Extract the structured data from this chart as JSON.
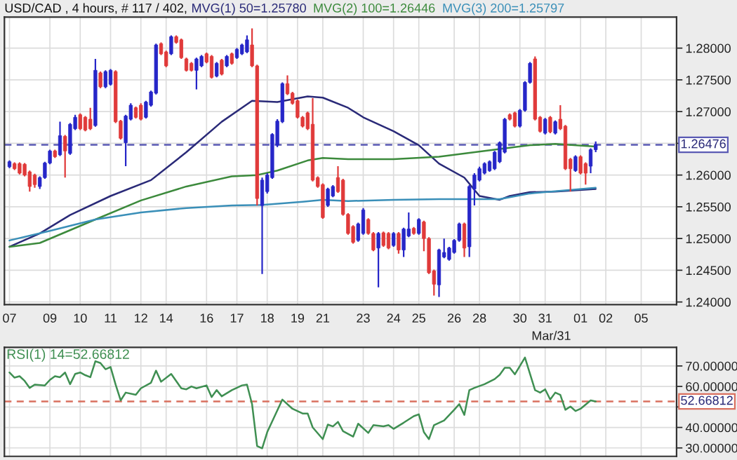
{
  "chart_data": [
    {
      "type": "candlestick",
      "title": "USD/CAD , 4 hours, # 117 / 402,",
      "categories": [
        "07",
        null,
        null,
        null,
        null,
        null,
        null,
        null,
        "09",
        null,
        null,
        null,
        null,
        null,
        "10",
        null,
        null,
        null,
        null,
        null,
        "11",
        null,
        null,
        null,
        null,
        null,
        "12",
        null,
        null,
        null,
        null,
        "14",
        null,
        null,
        null,
        null,
        null,
        null,
        null,
        "16",
        null,
        null,
        null,
        null,
        null,
        "17",
        null,
        null,
        null,
        null,
        null,
        "18",
        null,
        null,
        null,
        null,
        null,
        "19",
        null,
        null,
        null,
        null,
        "21",
        null,
        null,
        null,
        null,
        null,
        null,
        null,
        "23",
        null,
        null,
        null,
        null,
        null,
        "24",
        null,
        null,
        null,
        null,
        "25",
        null,
        null,
        null,
        null,
        null,
        null,
        "26",
        null,
        null,
        null,
        null,
        "28",
        null,
        null,
        null,
        null,
        null,
        null,
        null,
        "30",
        null,
        null,
        null,
        null,
        "31",
        null,
        null,
        null,
        null,
        null,
        null,
        "01",
        null,
        null,
        null,
        null,
        "02",
        null,
        null,
        null,
        null,
        null,
        null,
        "05",
        null,
        null,
        null,
        null,
        null,
        null
      ],
      "ohlc": [
        [
          1.2613,
          1.2623,
          1.2611,
          1.2621
        ],
        [
          1.2618,
          1.262,
          1.2608,
          1.261
        ],
        [
          1.2618,
          1.262,
          1.2601,
          1.2603
        ],
        [
          1.2617,
          1.2619,
          1.2598,
          1.26
        ],
        [
          1.2605,
          1.2607,
          1.2574,
          1.2582
        ],
        [
          1.26,
          1.2602,
          1.258,
          1.2585
        ],
        [
          1.2582,
          1.2598,
          1.2578,
          1.2596
        ],
        [
          1.2596,
          1.2621,
          1.2594,
          1.2619
        ],
        [
          1.2619,
          1.264,
          1.2617,
          1.2638
        ],
        [
          1.2638,
          1.264,
          1.2627,
          1.2629
        ],
        [
          1.2632,
          1.2684,
          1.263,
          1.2662
        ],
        [
          1.2661,
          1.2663,
          1.2596,
          1.2638
        ],
        [
          1.2634,
          1.2682,
          1.2632,
          1.268
        ],
        [
          1.2673,
          1.2695,
          1.2671,
          1.2691
        ],
        [
          1.2695,
          1.2697,
          1.2671,
          1.2673
        ],
        [
          1.2691,
          1.2693,
          1.2669,
          1.2671
        ],
        [
          1.2688,
          1.2706,
          1.2671,
          1.2673
        ],
        [
          1.2678,
          1.2783,
          1.2676,
          1.2765
        ],
        [
          1.2761,
          1.2763,
          1.2737,
          1.2739
        ],
        [
          1.2739,
          1.2765,
          1.2737,
          1.2763
        ],
        [
          1.2743,
          1.2767,
          1.2741,
          1.2765
        ],
        [
          1.2763,
          1.2765,
          1.2682,
          1.2684
        ],
        [
          1.2685,
          1.2687,
          1.2656,
          1.2658
        ],
        [
          1.2651,
          1.2695,
          1.2614,
          1.2693
        ],
        [
          1.2688,
          1.2713,
          1.2686,
          1.271
        ],
        [
          1.2706,
          1.2708,
          1.2689,
          1.2691
        ],
        [
          1.271,
          1.2713,
          1.2686,
          1.2688
        ],
        [
          1.2691,
          1.2717,
          1.2689,
          1.2715
        ],
        [
          1.271,
          1.2733,
          1.2708,
          1.2731
        ],
        [
          1.2729,
          1.2807,
          1.2727,
          1.2805
        ],
        [
          1.2807,
          1.2809,
          1.2789,
          1.2791
        ],
        [
          1.2794,
          1.2796,
          1.277,
          1.2772
        ],
        [
          1.2791,
          1.282,
          1.2789,
          1.2818
        ],
        [
          1.2818,
          1.282,
          1.2807,
          1.2809
        ],
        [
          1.2813,
          1.2815,
          1.2783,
          1.2785
        ],
        [
          1.2783,
          1.2785,
          1.2763,
          1.2765
        ],
        [
          1.2776,
          1.2778,
          1.2763,
          1.2765
        ],
        [
          1.2765,
          1.2785,
          1.2735,
          1.2783
        ],
        [
          1.2772,
          1.2789,
          1.277,
          1.2787
        ],
        [
          1.2791,
          1.2793,
          1.2776,
          1.2778
        ],
        [
          1.2787,
          1.2789,
          1.2752,
          1.2754
        ],
        [
          1.2756,
          1.2778,
          1.2754,
          1.2776
        ],
        [
          1.2781,
          1.2783,
          1.2757,
          1.2759
        ],
        [
          1.2772,
          1.2789,
          1.277,
          1.2787
        ],
        [
          1.2791,
          1.2793,
          1.2774,
          1.2776
        ],
        [
          1.2785,
          1.28,
          1.2783,
          1.2798
        ],
        [
          1.2791,
          1.2807,
          1.2789,
          1.2805
        ],
        [
          1.2794,
          1.282,
          1.2792,
          1.2813
        ],
        [
          1.2805,
          1.2831,
          1.277,
          1.2772
        ],
        [
          1.2772,
          1.2774,
          1.2552,
          1.2563
        ],
        [
          1.2552,
          1.2596,
          1.2444,
          1.2592
        ],
        [
          1.2574,
          1.2603,
          1.2571,
          1.26
        ],
        [
          1.2596,
          1.2666,
          1.2594,
          1.2664
        ],
        [
          1.2647,
          1.2688,
          1.2644,
          1.2685
        ],
        [
          1.2684,
          1.2746,
          1.2682,
          1.2744
        ],
        [
          1.2744,
          1.2757,
          1.2726,
          1.2728
        ],
        [
          1.2729,
          1.2731,
          1.2711,
          1.2713
        ],
        [
          1.2717,
          1.2719,
          1.2689,
          1.2691
        ],
        [
          1.2691,
          1.2693,
          1.2675,
          1.2677
        ],
        [
          1.2698,
          1.27,
          1.2671,
          1.2673
        ],
        [
          1.268,
          1.2721,
          1.259,
          1.2592
        ],
        [
          1.2596,
          1.2598,
          1.258,
          1.2582
        ],
        [
          1.2585,
          1.2587,
          1.2531,
          1.2533
        ],
        [
          1.2552,
          1.258,
          1.255,
          1.2578
        ],
        [
          1.2567,
          1.2584,
          1.2565,
          1.2582
        ],
        [
          1.2596,
          1.2614,
          1.2572,
          1.2574
        ],
        [
          1.2592,
          1.2594,
          1.2536,
          1.2538
        ],
        [
          1.2538,
          1.254,
          1.2506,
          1.2508
        ],
        [
          1.2519,
          1.2521,
          1.2492,
          1.2494
        ],
        [
          1.2497,
          1.2525,
          1.2495,
          1.2523
        ],
        [
          1.2508,
          1.2548,
          1.2506,
          1.2545
        ],
        [
          1.253,
          1.2532,
          1.2506,
          1.2508
        ],
        [
          1.2508,
          1.251,
          1.248,
          1.2482
        ],
        [
          1.2485,
          1.251,
          1.2423,
          1.2508
        ],
        [
          1.2509,
          1.2511,
          1.2487,
          1.2489
        ],
        [
          1.2508,
          1.251,
          1.2483,
          1.2485
        ],
        [
          1.2489,
          1.251,
          1.2487,
          1.2508
        ],
        [
          1.2508,
          1.251,
          1.2476,
          1.2482
        ],
        [
          1.2482,
          1.2517,
          1.2471,
          1.2515
        ],
        [
          1.2504,
          1.2541,
          1.2502,
          1.2515
        ],
        [
          1.2516,
          1.2518,
          1.2506,
          1.2508
        ],
        [
          1.2508,
          1.2532,
          1.2506,
          1.253
        ],
        [
          1.2526,
          1.2528,
          1.248,
          1.25
        ],
        [
          1.25,
          1.2502,
          1.2444,
          1.2446
        ],
        [
          1.2449,
          1.2451,
          1.241,
          1.2428
        ],
        [
          1.2427,
          1.2484,
          1.2408,
          1.2482
        ],
        [
          1.2471,
          1.25,
          1.2469,
          1.2478
        ],
        [
          1.2467,
          1.2487,
          1.2465,
          1.2485
        ],
        [
          1.2478,
          1.2499,
          1.2476,
          1.2497
        ],
        [
          1.2497,
          1.2525,
          1.2495,
          1.2523
        ],
        [
          1.2523,
          1.2525,
          1.2471,
          1.2485
        ],
        [
          1.2487,
          1.2584,
          1.2471,
          1.2582
        ],
        [
          1.2578,
          1.2603,
          1.2552,
          1.26
        ],
        [
          1.2592,
          1.2613,
          1.259,
          1.261
        ],
        [
          1.2603,
          1.262,
          1.2601,
          1.2618
        ],
        [
          1.2607,
          1.2623,
          1.2605,
          1.2621
        ],
        [
          1.261,
          1.2638,
          1.2608,
          1.2636
        ],
        [
          1.2621,
          1.2653,
          1.2619,
          1.2651
        ],
        [
          1.2636,
          1.269,
          1.2634,
          1.2688
        ],
        [
          1.2695,
          1.2697,
          1.2686,
          1.2688
        ],
        [
          1.2698,
          1.27,
          1.2675,
          1.2677
        ],
        [
          1.2677,
          1.2704,
          1.2675,
          1.2702
        ],
        [
          1.2702,
          1.2748,
          1.27,
          1.2746
        ],
        [
          1.2746,
          1.2778,
          1.2744,
          1.2776
        ],
        [
          1.2783,
          1.2787,
          1.2686,
          1.2688
        ],
        [
          1.2691,
          1.2693,
          1.2667,
          1.2669
        ],
        [
          1.2666,
          1.269,
          1.2664,
          1.2688
        ],
        [
          1.2691,
          1.2693,
          1.2666,
          1.2668
        ],
        [
          1.2666,
          1.2686,
          1.2664,
          1.2684
        ],
        [
          1.2688,
          1.271,
          1.2671,
          1.2673
        ],
        [
          1.2677,
          1.2679,
          1.2608,
          1.261
        ],
        [
          1.2625,
          1.2627,
          1.2574,
          1.261
        ],
        [
          1.2607,
          1.2631,
          1.2605,
          1.2629
        ],
        [
          1.2629,
          1.2631,
          1.2601,
          1.2603
        ],
        [
          1.2618,
          1.262,
          1.2585,
          1.2603
        ],
        [
          1.2614,
          1.2642,
          1.2603,
          1.264
        ],
        [
          1.264,
          1.2653,
          1.2636,
          1.2648
        ],
        null,
        null,
        null,
        null,
        null,
        null,
        null,
        null,
        null,
        null,
        null,
        null,
        null,
        null,
        null
      ],
      "series": [
        {
          "name": "MVG(1) 50=1.25780",
          "type": "line",
          "color": "#2a2a78",
          "values": [
            1.2487,
            null,
            null,
            null,
            null,
            null,
            1.2508,
            null,
            null,
            null,
            null,
            null,
            1.2537,
            null,
            null,
            null,
            null,
            null,
            null,
            null,
            1.2567,
            null,
            null,
            null,
            null,
            null,
            null,
            null,
            1.2592,
            null,
            null,
            null,
            null,
            null,
            null,
            1.2636,
            null,
            null,
            null,
            null,
            null,
            null,
            1.2684,
            null,
            null,
            null,
            null,
            null,
            1.2717,
            null,
            null,
            null,
            null,
            1.2715,
            null,
            null,
            null,
            null,
            null,
            1.2724,
            null,
            null,
            1.2722,
            null,
            null,
            null,
            null,
            1.2706,
            null,
            null,
            1.2691,
            null,
            null,
            null,
            null,
            null,
            1.2669,
            null,
            null,
            null,
            null,
            1.2647,
            null,
            null,
            null,
            1.2618,
            null,
            null,
            null,
            null,
            1.2596,
            null,
            null,
            1.2567,
            null,
            null,
            null,
            1.2561,
            null,
            1.2567,
            null,
            null,
            null,
            1.2573,
            null,
            null,
            null,
            null,
            1.2574,
            null,
            null,
            null,
            null,
            null,
            null,
            null,
            1.2578,
            null,
            null,
            null,
            null,
            null,
            null,
            null,
            null,
            null,
            null,
            null,
            null,
            null,
            null,
            null
          ]
        },
        {
          "name": "MVG(2) 100=1.26446",
          "type": "line",
          "color": "#3c8a3c",
          "values": [
            1.2487,
            null,
            null,
            null,
            null,
            null,
            1.2493,
            null,
            null,
            null,
            null,
            null,
            null,
            null,
            null,
            null,
            null,
            1.253,
            null,
            null,
            null,
            null,
            null,
            null,
            null,
            null,
            1.256,
            null,
            null,
            null,
            null,
            null,
            null,
            null,
            null,
            1.2582,
            null,
            null,
            null,
            null,
            null,
            null,
            null,
            null,
            1.2598,
            null,
            null,
            null,
            null,
            1.26,
            null,
            null,
            null,
            1.2607,
            null,
            null,
            null,
            null,
            null,
            1.2623,
            null,
            null,
            1.2627,
            null,
            null,
            null,
            null,
            1.2625,
            null,
            null,
            null,
            null,
            null,
            null,
            null,
            null,
            1.2625,
            null,
            null,
            null,
            null,
            null,
            null,
            null,
            null,
            1.2629,
            null,
            null,
            null,
            null,
            null,
            null,
            null,
            null,
            1.2638,
            null,
            null,
            null,
            null,
            null,
            null,
            null,
            null,
            1.2647,
            null,
            null,
            null,
            null,
            1.2649,
            null,
            null,
            null,
            null,
            null,
            null,
            null,
            1.2645,
            null,
            null,
            null,
            null,
            null,
            null,
            null,
            null,
            null,
            null,
            null,
            null,
            null,
            null,
            null
          ]
        },
        {
          "name": "MVG(3) 200=1.25797",
          "type": "line",
          "color": "#3a8fb8",
          "values": [
            1.2497,
            null,
            null,
            null,
            null,
            null,
            null,
            null,
            1.2512,
            null,
            null,
            null,
            null,
            null,
            null,
            null,
            null,
            1.253,
            null,
            null,
            null,
            null,
            null,
            null,
            null,
            null,
            1.2541,
            null,
            null,
            null,
            null,
            null,
            null,
            null,
            null,
            1.2548,
            null,
            null,
            null,
            null,
            null,
            null,
            null,
            null,
            1.2552,
            null,
            null,
            null,
            null,
            null,
            1.2553,
            null,
            null,
            null,
            null,
            null,
            null,
            null,
            1.2558,
            null,
            null,
            null,
            1.2561,
            null,
            null,
            null,
            null,
            1.2559,
            null,
            null,
            null,
            null,
            null,
            null,
            null,
            null,
            1.2561,
            null,
            null,
            null,
            null,
            null,
            null,
            null,
            null,
            1.2562,
            null,
            null,
            null,
            null,
            null,
            null,
            null,
            1.2562,
            null,
            null,
            null,
            1.2562,
            null,
            null,
            null,
            null,
            null,
            1.2571,
            null,
            null,
            null,
            null,
            null,
            null,
            null,
            null,
            null,
            null,
            null,
            null,
            1.258,
            null,
            null,
            null,
            null,
            null,
            null,
            null,
            null,
            null,
            null,
            null,
            null,
            null,
            null,
            null
          ]
        }
      ],
      "ylim": [
        1.2396,
        1.2849
      ],
      "yticks": [
        {
          "value": 1.24,
          "label": "1.24000"
        },
        {
          "value": 1.245,
          "label": "1.24500"
        },
        {
          "value": 1.25,
          "label": "1.25000"
        },
        {
          "value": 1.255,
          "label": "1.25500"
        },
        {
          "value": 1.26,
          "label": "1.26000"
        },
        {
          "value": 1.265,
          "label": null
        },
        {
          "value": 1.27,
          "label": "1.27000"
        },
        {
          "value": 1.275,
          "label": "1.27500"
        },
        {
          "value": 1.28,
          "label": "1.28000"
        }
      ],
      "ref_lines": [
        {
          "axis": "y",
          "value": 1.26476,
          "label": "1.26476",
          "color": "#5a5ab4",
          "line_style": "dashed"
        }
      ],
      "annotations": [
        "Mar/31"
      ],
      "grid": true,
      "legend": "top"
    },
    {
      "type": "line",
      "title": "RSI(1) 14=52.66812",
      "categories": [
        "07",
        null,
        null,
        null,
        null,
        null,
        null,
        null,
        "09",
        null,
        null,
        null,
        null,
        null,
        "10",
        null,
        null,
        null,
        null,
        null,
        "11",
        null,
        null,
        null,
        null,
        null,
        "12",
        null,
        null,
        null,
        null,
        "14",
        null,
        null,
        null,
        null,
        null,
        null,
        null,
        "16",
        null,
        null,
        null,
        null,
        null,
        "17",
        null,
        null,
        null,
        null,
        null,
        "18",
        null,
        null,
        null,
        null,
        null,
        "19",
        null,
        null,
        null,
        null,
        "21",
        null,
        null,
        null,
        null,
        null,
        null,
        null,
        "23",
        null,
        null,
        null,
        null,
        null,
        "24",
        null,
        null,
        null,
        null,
        "25",
        null,
        null,
        null,
        null,
        null,
        null,
        "26",
        null,
        null,
        null,
        null,
        "28",
        null,
        null,
        null,
        null,
        null,
        null,
        null,
        "30",
        null,
        null,
        null,
        null,
        "31",
        null,
        null,
        null,
        null,
        null,
        null,
        "01",
        null,
        null,
        null,
        null,
        "02",
        null,
        null,
        null,
        null,
        null,
        null,
        "05",
        null,
        null,
        null,
        null,
        null,
        null
      ],
      "series": [
        {
          "color": "#3f8f52",
          "values": [
            66.8,
            64.3,
            65.0,
            62.7,
            59.3,
            60.9,
            null,
            60.5,
            63.2,
            65.0,
            64.5,
            66.8,
            61.1,
            66.1,
            66.8,
            65.5,
            64.5,
            72.3,
            71.4,
            68.4,
            69.5,
            60.9,
            53.2,
            57.0,
            null,
            55.9,
            59.1,
            null,
            61.8,
            67.7,
            62.3,
            null,
            66.1,
            null,
            59.1,
            58.6,
            60.0,
            59.1,
            null,
            60.5,
            54.8,
            58.2,
            55.2,
            null,
            58.2,
            null,
            60.5,
            60.9,
            51.4,
            30.9,
            29.8,
            37.7,
            null,
            null,
            53.6,
            null,
            49.1,
            null,
            46.8,
            46.8,
            40.0,
            null,
            34.3,
            41.4,
            40.5,
            42.7,
            38.2,
            null,
            35.5,
            41.8,
            null,
            37.3,
            41.1,
            null,
            40.5,
            41.1,
            39.3,
            null,
            42.3,
            null,
            45.5,
            46.4,
            37.7,
            34.3,
            41.1,
            null,
            43.4,
            null,
            48.6,
            51.4,
            46.1,
            58.2,
            59.3,
            null,
            61.1,
            null,
            63.6,
            65.7,
            69.1,
            69.1,
            65.9,
            null,
            74.1,
            null,
            58.2,
            57.0,
            58.6,
            53.6,
            57.0,
            55.9,
            48.6,
            50.2,
            48.0,
            49.1,
            null,
            53.2,
            52.7,
            null,
            null,
            null,
            null,
            null,
            null,
            null,
            null,
            null,
            null,
            null,
            null,
            null,
            null,
            null
          ]
        }
      ],
      "ylim": [
        25.9,
        79.1
      ],
      "yticks": [
        {
          "value": 30,
          "label": "30.00000"
        },
        {
          "value": 40,
          "label": "40.00000"
        },
        {
          "value": 50,
          "label": null
        },
        {
          "value": 60,
          "label": "60.00000"
        },
        {
          "value": 70,
          "label": "70.00000"
        }
      ],
      "ref_lines": [
        {
          "axis": "y",
          "value": 52.66812,
          "label": "52.66812",
          "color": "#d9705f",
          "line_style": "dashed"
        }
      ],
      "grid": true,
      "tick_labels": "y"
    }
  ]
}
